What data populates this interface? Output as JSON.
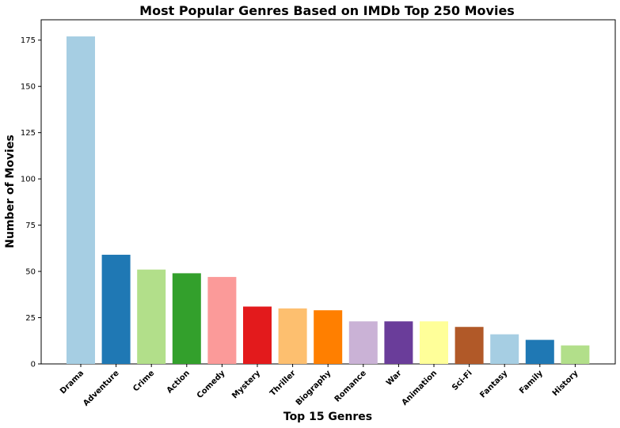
{
  "chart_data": {
    "type": "bar",
    "title": "Most Popular Genres Based on IMDb Top 250 Movies",
    "xlabel": "Top 15 Genres",
    "ylabel": "Number of Movies",
    "categories": [
      "Drama",
      "Adventure",
      "Crime",
      "Action",
      "Comedy",
      "Mystery",
      "Thriller",
      "Biography",
      "Romance",
      "War",
      "Animation",
      "Sci-Fi",
      "Fantasy",
      "Family",
      "History"
    ],
    "values": [
      177,
      59,
      51,
      49,
      47,
      31,
      30,
      29,
      23,
      23,
      23,
      20,
      16,
      13,
      10
    ],
    "ylim": [
      0,
      186
    ],
    "yticks": [
      0,
      25,
      50,
      75,
      100,
      125,
      150,
      175
    ],
    "colors": [
      "#a6cee3",
      "#1f78b4",
      "#b2df8a",
      "#33a02c",
      "#fb9a99",
      "#e31a1c",
      "#fdbf6f",
      "#ff7f00",
      "#cab2d6",
      "#6a3d9a",
      "#ffff99",
      "#b15928",
      "#a6cee3",
      "#1f78b4",
      "#b2df8a"
    ],
    "grid": false,
    "legend": "none"
  }
}
